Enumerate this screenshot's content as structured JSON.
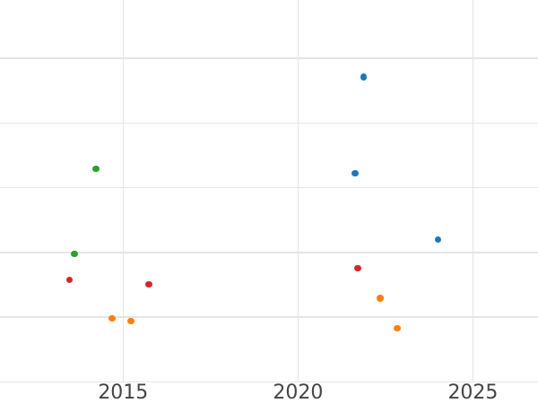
{
  "chart_data": {
    "type": "scatter",
    "title": "",
    "xlabel": "",
    "ylabel": "",
    "grid": true,
    "legend": false,
    "x_axis": {
      "ticks": [
        2015,
        2020,
        2025
      ],
      "tick_labels": [
        "2015",
        "2020",
        "2025"
      ],
      "range": [
        2011.48,
        2026.86
      ]
    },
    "y_axis": {
      "ticks": [
        0,
        1,
        2,
        3,
        4,
        5
      ],
      "tick_labels": [],
      "range": [
        0,
        5.9
      ],
      "unit": "gridline-intervals (no y tick labels visible in image)"
    },
    "series": [
      {
        "name": "blue",
        "color": "#1f77b4",
        "x": [
          2021.88,
          2021.63,
          2024.0
        ],
        "y": [
          4.71,
          3.22,
          2.2
        ]
      },
      {
        "name": "orange",
        "color": "#ff7f0e",
        "x": [
          2014.68,
          2015.22,
          2022.35,
          2022.83
        ],
        "y": [
          0.98,
          0.94,
          1.29,
          0.83
        ]
      },
      {
        "name": "green",
        "color": "#2ca02c",
        "x": [
          2014.22,
          2013.61
        ],
        "y": [
          3.29,
          1.98
        ]
      },
      {
        "name": "red",
        "color": "#d62728",
        "x": [
          2013.47,
          2015.73,
          2021.71
        ],
        "y": [
          1.58,
          1.51,
          1.76
        ]
      }
    ],
    "style": {
      "background_color": "#ffffff",
      "gridline_color": "#e5e5e5",
      "tick_label_color": "#444444",
      "marker_diameter_px": 7.5
    }
  }
}
